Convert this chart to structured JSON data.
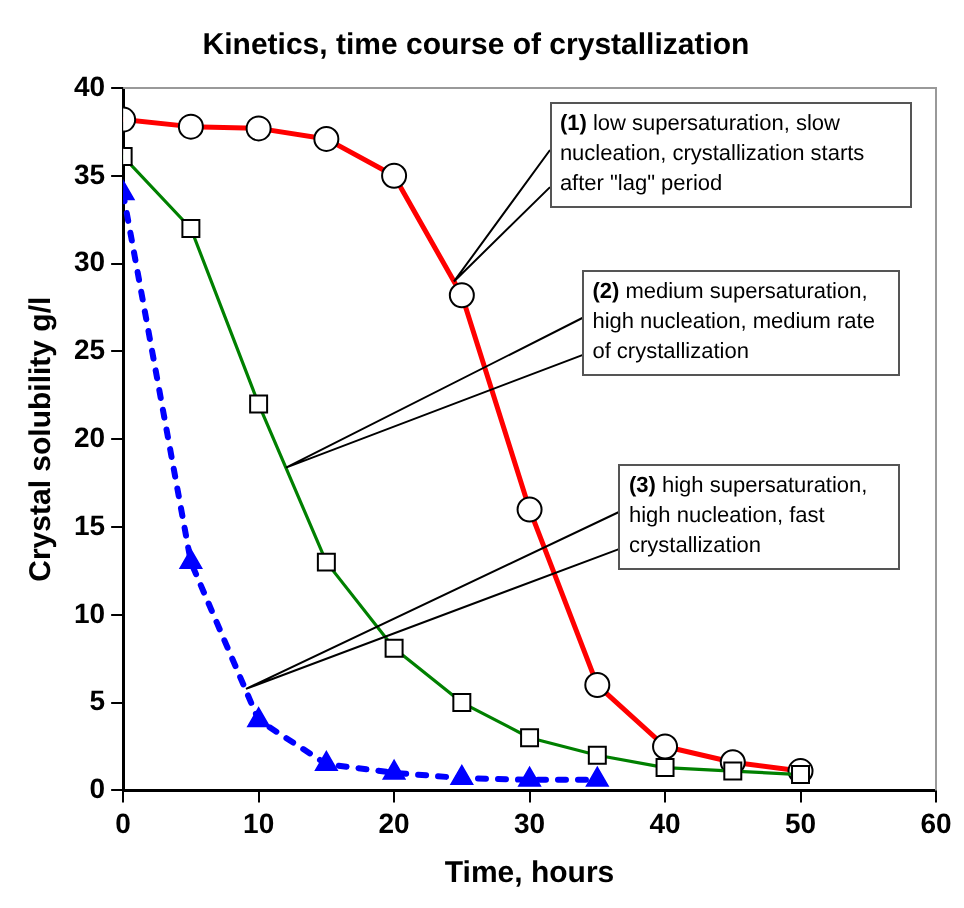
{
  "chart_data": {
    "type": "line",
    "title": "Kinetics, time course of crystallization",
    "xlabel": "Time, hours",
    "ylabel": "Crystal solubility g/l",
    "xlim": [
      0,
      60
    ],
    "xticks": [
      0,
      10,
      20,
      30,
      40,
      50,
      60
    ],
    "ylim": [
      0,
      40
    ],
    "yticks": [
      0,
      5,
      10,
      15,
      20,
      25,
      30,
      35,
      40
    ],
    "grid": false,
    "legend": false,
    "series": [
      {
        "color": "#ff0000",
        "marker": "circle",
        "line_style": "solid",
        "x": [
          0,
          5,
          10,
          15,
          20,
          25,
          30,
          35,
          40,
          45,
          50
        ],
        "values": [
          38.2,
          37.8,
          37.7,
          37.1,
          35,
          28.2,
          16,
          6,
          2.5,
          1.6,
          1.1
        ]
      },
      {
        "color": "#008000",
        "marker": "square",
        "line_style": "solid",
        "x": [
          0,
          5,
          10,
          15,
          20,
          25,
          30,
          35,
          40,
          45,
          50
        ],
        "values": [
          36.1,
          32,
          22,
          13,
          8.1,
          5,
          3,
          2,
          1.3,
          1.1,
          0.9
        ]
      },
      {
        "color": "#0000ff",
        "marker": "triangle",
        "line_style": "dotted",
        "x": [
          0,
          5,
          10,
          15,
          20,
          25,
          30,
          35
        ],
        "values": [
          34,
          13,
          4,
          1.5,
          1,
          0.7,
          0.6,
          0.6
        ]
      }
    ],
    "annotations": [
      "(1) low supersaturation, slow nucleation, crystallization starts after \"lag\" period",
      "(2) medium supersaturation, high nucleation, medium rate of crystallization",
      "(3) high supersaturation, high nucleation, fast crystallization"
    ]
  }
}
